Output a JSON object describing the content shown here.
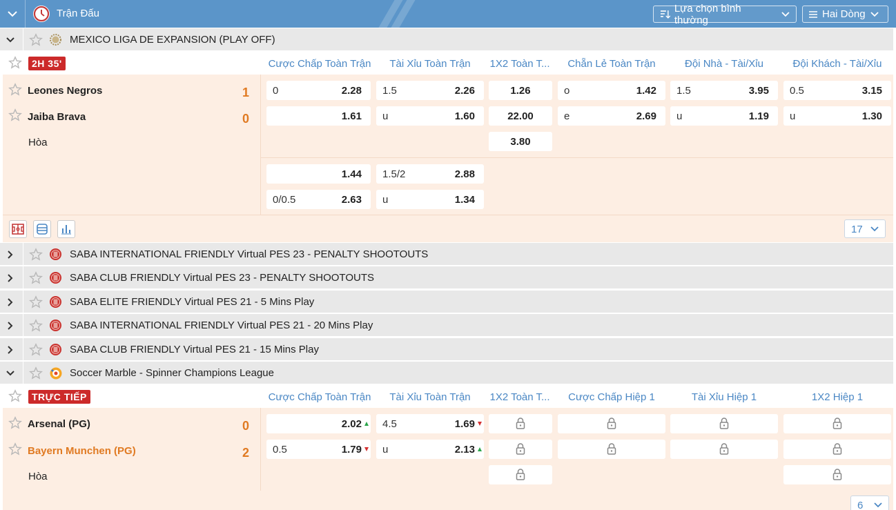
{
  "header": {
    "title": "Trận Đấu",
    "sort_label": "Lựa chọn bình thường",
    "view_label": "Hai Dòng"
  },
  "league1": {
    "name": "MEXICO LIGA DE EXPANSION (PLAY OFF)",
    "status": "2H 35'",
    "columns": [
      "Cược Chấp Toàn Trận",
      "Tài Xỉu Toàn Trận",
      "1X2 Toàn T...",
      "Chẵn Lẻ Toàn Trận",
      "Đội Nhà - Tài/Xỉu",
      "Đội Khách - Tài/Xỉu"
    ],
    "home": "Leones Negros",
    "away": "Jaiba Brava",
    "home_score": "1",
    "away_score": "0",
    "draw": "Hòa",
    "odds": {
      "r1": {
        "hcap_l": "0",
        "hcap_v": "2.28",
        "ou_l": "1.5",
        "ou_v": "2.26",
        "x12": "1.26",
        "oe_l": "o",
        "oe_v": "1.42",
        "hou_l": "1.5",
        "hou_v": "3.95",
        "aou_l": "0.5",
        "aou_v": "3.15"
      },
      "r2": {
        "hcap_v": "1.61",
        "ou_l": "u",
        "ou_v": "1.60",
        "x12": "22.00",
        "oe_l": "e",
        "oe_v": "2.69",
        "hou_l": "u",
        "hou_v": "1.19",
        "aou_l": "u",
        "aou_v": "1.30"
      },
      "r3": {
        "x12": "3.80"
      },
      "r4": {
        "hcap_v": "1.44",
        "ou_l": "1.5/2",
        "ou_v": "2.88"
      },
      "r5": {
        "hcap_l": "0/0.5",
        "hcap_v": "2.63",
        "ou_l": "u",
        "ou_v": "1.34"
      }
    },
    "more_count": "17"
  },
  "leagues_collapsed": [
    {
      "name": "SABA INTERNATIONAL FRIENDLY Virtual PES 23 - PENALTY SHOOTOUTS"
    },
    {
      "name": "SABA CLUB FRIENDLY Virtual PES 23 - PENALTY SHOOTOUTS"
    },
    {
      "name": "SABA ELITE FRIENDLY Virtual PES 21 - 5 Mins Play"
    },
    {
      "name": "SABA INTERNATIONAL FRIENDLY Virtual PES 21 - 20 Mins Play"
    },
    {
      "name": "SABA CLUB FRIENDLY Virtual PES 21 - 15 Mins Play"
    }
  ],
  "league2": {
    "name": "Soccer Marble - Spinner Champions League",
    "status": "TRỰC TIẾP",
    "columns": [
      "Cược Chấp Toàn Trận",
      "Tài Xỉu Toàn Trận",
      "1X2 Toàn T...",
      "Cược Chấp Hiệp 1",
      "Tài Xỉu Hiệp 1",
      "1X2 Hiệp 1"
    ],
    "home": "Arsenal (PG)",
    "away": "Bayern Munchen (PG)",
    "home_score": "0",
    "away_score": "2",
    "draw": "Hòa",
    "odds": {
      "r1": {
        "hcap_v": "2.02",
        "ou_l": "4.5",
        "ou_v": "1.69"
      },
      "r2": {
        "hcap_l": "0.5",
        "hcap_v": "1.79",
        "ou_l": "u",
        "ou_v": "2.13"
      }
    },
    "more_count": "6"
  },
  "colors": {
    "header": "#5b95c9",
    "accent_blue": "#4a87c4",
    "live_red": "#cc2a2a",
    "score_orange": "#e07a22",
    "panel": "#fdeee3"
  }
}
